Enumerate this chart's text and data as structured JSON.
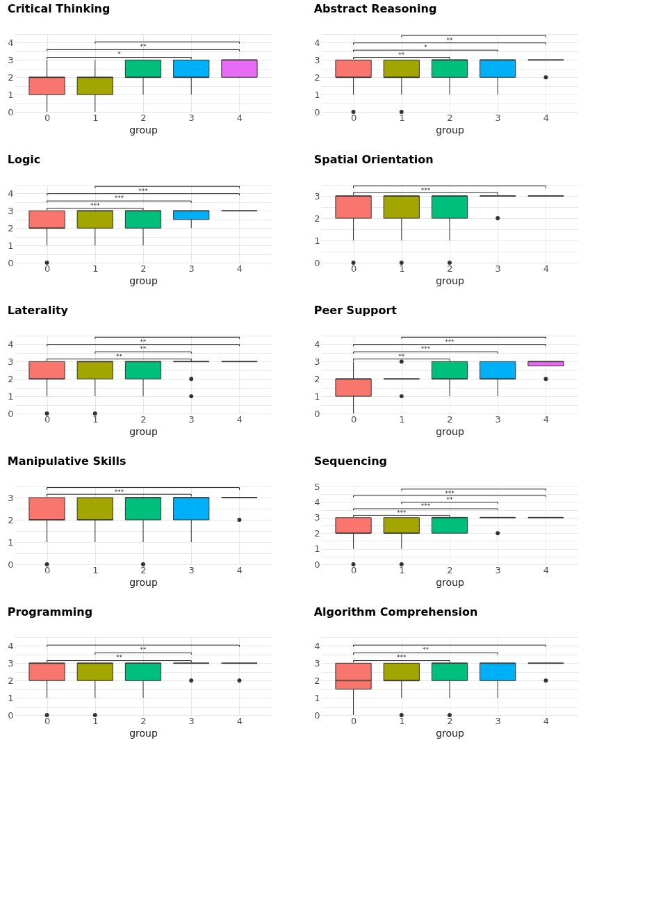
{
  "chart_data": [
    {
      "type": "box",
      "title": "Critical Thinking",
      "xlabel": "group",
      "categories": [
        "0",
        "1",
        "2",
        "3",
        "4"
      ],
      "colors": [
        "#f8766d",
        "#a3a500",
        "#00bf7d",
        "#00b0f6",
        "#e76bf3"
      ],
      "ylim": [
        0,
        4.5
      ],
      "yticks": [
        0,
        {
          "value": 0.5,
          "label": null
        },
        1,
        {
          "value": 1.5,
          "label": null
        },
        2,
        {
          "value": 2.5,
          "label": null
        },
        3,
        {
          "value": 3.5,
          "label": null
        },
        4,
        {
          "value": 4.5,
          "label": null
        }
      ],
      "grid": true,
      "boxes": [
        {
          "low": 0,
          "q1": 1,
          "median": 2,
          "q3": 2,
          "high": 3
        },
        {
          "low": 0,
          "q1": 1,
          "median": 2,
          "q3": 2,
          "high": 3
        },
        {
          "low": 1,
          "q1": 2,
          "median": 2,
          "q3": 3,
          "high": 3
        },
        {
          "low": 1,
          "q1": 2,
          "median": 2,
          "q3": 3,
          "high": 3
        },
        {
          "low": 2,
          "q1": 2,
          "median": 3,
          "q3": 3,
          "high": 3
        }
      ],
      "annotations": [
        "*",
        "**"
      ]
    },
    {
      "type": "box",
      "title": "Abstract Reasoning",
      "xlabel": "group",
      "categories": [
        "0",
        "1",
        "2",
        "3",
        "4"
      ],
      "colors": [
        "#f8766d",
        "#a3a500",
        "#00bf7d",
        "#00b0f6",
        "#333333"
      ],
      "ylim": [
        0,
        4.5
      ],
      "yticks": [
        0,
        {
          "value": 0.5,
          "label": null
        },
        1,
        {
          "value": 1.5,
          "label": null
        },
        2,
        {
          "value": 2.5,
          "label": null
        },
        3,
        {
          "value": 3.5,
          "label": null
        },
        4,
        {
          "value": 4.5,
          "label": null
        }
      ],
      "grid": true,
      "boxes": [
        {
          "low": 1,
          "q1": 2,
          "median": 2,
          "q3": 3,
          "high": 3,
          "outliers": [
            0
          ]
        },
        {
          "low": 1,
          "q1": 2,
          "median": 2,
          "q3": 3,
          "high": 3,
          "outliers": [
            0
          ]
        },
        {
          "low": 1,
          "q1": 2,
          "median": 3,
          "q3": 3,
          "high": 3
        },
        {
          "low": 1,
          "q1": 2,
          "median": 3,
          "q3": 3,
          "high": 3
        },
        {
          "low": 3,
          "q1": 3,
          "median": 3,
          "q3": 3,
          "high": 3,
          "outliers": [
            2
          ]
        }
      ],
      "annotations": [
        "**",
        "*",
        "**"
      ]
    },
    {
      "type": "box",
      "title": "Logic",
      "xlabel": "group",
      "categories": [
        "0",
        "1",
        "2",
        "3",
        "4"
      ],
      "colors": [
        "#f8766d",
        "#a3a500",
        "#00bf7d",
        "#00b0f6",
        "#333333"
      ],
      "ylim": [
        0,
        4.5
      ],
      "yticks": [
        0,
        {
          "value": 0.5,
          "label": null
        },
        1,
        {
          "value": 1.5,
          "label": null
        },
        2,
        {
          "value": 2.5,
          "label": null
        },
        3,
        {
          "value": 3.5,
          "label": null
        },
        4,
        {
          "value": 4.5,
          "label": null
        }
      ],
      "grid": true,
      "boxes": [
        {
          "low": 1,
          "q1": 2,
          "median": 2,
          "q3": 3,
          "high": 3,
          "outliers": [
            0
          ]
        },
        {
          "low": 1,
          "q1": 2,
          "median": 3,
          "q3": 3,
          "high": 3
        },
        {
          "low": 1,
          "q1": 2,
          "median": 3,
          "q3": 3,
          "high": 3
        },
        {
          "low": 2,
          "q1": 2.5,
          "median": 3,
          "q3": 3,
          "high": 3
        },
        {
          "low": 3,
          "q1": 3,
          "median": 3,
          "q3": 3,
          "high": 3
        }
      ],
      "annotations": [
        "***",
        "***",
        "***"
      ]
    },
    {
      "type": "box",
      "title": "Spatial Orientation",
      "xlabel": "group",
      "categories": [
        "0",
        "1",
        "2",
        "3",
        "4"
      ],
      "colors": [
        "#f8766d",
        "#a3a500",
        "#00bf7d",
        "#333333",
        "#333333"
      ],
      "ylim": [
        0,
        3.5
      ],
      "yticks": [
        0,
        {
          "value": 0.5,
          "label": null
        },
        1,
        {
          "value": 1.5,
          "label": null
        },
        2,
        {
          "value": 2.5,
          "label": null
        },
        3,
        {
          "value": 3.5,
          "label": null
        }
      ],
      "grid": true,
      "boxes": [
        {
          "low": 1,
          "q1": 2,
          "median": 3,
          "q3": 3,
          "high": 3,
          "outliers": [
            0
          ]
        },
        {
          "low": 1,
          "q1": 2,
          "median": 3,
          "q3": 3,
          "high": 3,
          "outliers": [
            0
          ]
        },
        {
          "low": 1,
          "q1": 2,
          "median": 3,
          "q3": 3,
          "high": 3,
          "outliers": [
            0
          ]
        },
        {
          "low": 3,
          "q1": 3,
          "median": 3,
          "q3": 3,
          "high": 3,
          "outliers": [
            2
          ]
        },
        {
          "low": 3,
          "q1": 3,
          "median": 3,
          "q3": 3,
          "high": 3
        }
      ],
      "annotations": [
        "***"
      ]
    },
    {
      "type": "box",
      "title": "Laterality",
      "xlabel": "group",
      "categories": [
        "0",
        "1",
        "2",
        "3",
        "4"
      ],
      "colors": [
        "#f8766d",
        "#a3a500",
        "#00bf7d",
        "#333333",
        "#333333"
      ],
      "ylim": [
        0,
        4.5
      ],
      "yticks": [
        0,
        {
          "value": 0.5,
          "label": null
        },
        1,
        {
          "value": 1.5,
          "label": null
        },
        2,
        {
          "value": 2.5,
          "label": null
        },
        3,
        {
          "value": 3.5,
          "label": null
        },
        4,
        {
          "value": 4.5,
          "label": null
        }
      ],
      "grid": true,
      "boxes": [
        {
          "low": 1,
          "q1": 2,
          "median": 2,
          "q3": 3,
          "high": 3,
          "outliers": [
            0
          ]
        },
        {
          "low": 1,
          "q1": 2,
          "median": 3,
          "q3": 3,
          "high": 3,
          "outliers": [
            0
          ]
        },
        {
          "low": 1,
          "q1": 2,
          "median": 3,
          "q3": 3,
          "high": 3
        },
        {
          "low": 3,
          "q1": 3,
          "median": 3,
          "q3": 3,
          "high": 3,
          "outliers": [
            2,
            1
          ]
        },
        {
          "low": 3,
          "q1": 3,
          "median": 3,
          "q3": 3,
          "high": 3
        }
      ],
      "annotations": [
        "**",
        "**",
        "**"
      ]
    },
    {
      "type": "box",
      "title": "Peer Support",
      "xlabel": "group",
      "categories": [
        "0",
        "1",
        "2",
        "3",
        "4"
      ],
      "colors": [
        "#f8766d",
        "#333333",
        "#00bf7d",
        "#00b0f6",
        "#e76bf3"
      ],
      "ylim": [
        0,
        4.5
      ],
      "yticks": [
        0,
        {
          "value": 0.5,
          "label": null
        },
        1,
        {
          "value": 1.5,
          "label": null
        },
        2,
        {
          "value": 2.5,
          "label": null
        },
        3,
        {
          "value": 3.5,
          "label": null
        },
        4,
        {
          "value": 4.5,
          "label": null
        }
      ],
      "grid": true,
      "boxes": [
        {
          "low": 0,
          "q1": 1,
          "median": 2,
          "q3": 2,
          "high": 3
        },
        {
          "low": 2,
          "q1": 2,
          "median": 2,
          "q3": 2,
          "high": 2,
          "outliers": [
            3,
            1
          ]
        },
        {
          "low": 1,
          "q1": 2,
          "median": 2,
          "q3": 3,
          "high": 3
        },
        {
          "low": 1,
          "q1": 2,
          "median": 2,
          "q3": 3,
          "high": 3
        },
        {
          "low": 2.75,
          "q1": 2.75,
          "median": 3,
          "q3": 3,
          "high": 3,
          "outliers": [
            2
          ]
        }
      ],
      "annotations": [
        "**",
        "***",
        "***"
      ]
    },
    {
      "type": "box",
      "title": "Manipulative Skills",
      "xlabel": "group",
      "categories": [
        "0",
        "1",
        "2",
        "3",
        "4"
      ],
      "colors": [
        "#f8766d",
        "#a3a500",
        "#00bf7d",
        "#00b0f6",
        "#333333"
      ],
      "ylim": [
        0,
        3.5
      ],
      "yticks": [
        0,
        {
          "value": 0.5,
          "label": null
        },
        1,
        {
          "value": 1.5,
          "label": null
        },
        2,
        {
          "value": 2.5,
          "label": null
        },
        3,
        {
          "value": 3.5,
          "label": null
        }
      ],
      "grid": true,
      "boxes": [
        {
          "low": 1,
          "q1": 2,
          "median": 2,
          "q3": 3,
          "high": 3,
          "outliers": [
            0
          ]
        },
        {
          "low": 1,
          "q1": 2,
          "median": 2,
          "q3": 3,
          "high": 3
        },
        {
          "low": 1,
          "q1": 2,
          "median": 3,
          "q3": 3,
          "high": 3,
          "outliers": [
            0
          ]
        },
        {
          "low": 1,
          "q1": 2,
          "median": 3,
          "q3": 3,
          "high": 3
        },
        {
          "low": 3,
          "q1": 3,
          "median": 3,
          "q3": 3,
          "high": 3,
          "outliers": [
            2
          ]
        }
      ],
      "annotations": [
        "***"
      ]
    },
    {
      "type": "box",
      "title": "Sequencing",
      "xlabel": "group",
      "categories": [
        "0",
        "1",
        "2",
        "3",
        "4"
      ],
      "colors": [
        "#f8766d",
        "#a3a500",
        "#00bf7d",
        "#333333",
        "#333333"
      ],
      "ylim": [
        0,
        5
      ],
      "yticks": [
        0,
        {
          "value": 0.5,
          "label": null
        },
        1,
        {
          "value": 1.5,
          "label": null
        },
        2,
        {
          "value": 2.5,
          "label": null
        },
        3,
        {
          "value": 3.5,
          "label": null
        },
        4,
        {
          "value": 4.5,
          "label": null
        },
        5
      ],
      "grid": true,
      "boxes": [
        {
          "low": 1,
          "q1": 2,
          "median": 2,
          "q3": 3,
          "high": 3,
          "outliers": [
            0
          ]
        },
        {
          "low": 1,
          "q1": 2,
          "median": 2,
          "q3": 3,
          "high": 3,
          "outliers": [
            0
          ]
        },
        {
          "low": 2,
          "q1": 2,
          "median": 3,
          "q3": 3,
          "high": 3
        },
        {
          "low": 3,
          "q1": 3,
          "median": 3,
          "q3": 3,
          "high": 3,
          "outliers": [
            2
          ]
        },
        {
          "low": 3,
          "q1": 3,
          "median": 3,
          "q3": 3,
          "high": 3
        }
      ],
      "annotations": [
        "***",
        "***",
        "**",
        "***"
      ]
    },
    {
      "type": "box",
      "title": "Programming",
      "xlabel": "group",
      "categories": [
        "0",
        "1",
        "2",
        "3",
        "4"
      ],
      "colors": [
        "#f8766d",
        "#a3a500",
        "#00bf7d",
        "#333333",
        "#333333"
      ],
      "ylim": [
        0,
        4.5
      ],
      "yticks": [
        0,
        {
          "value": 0.5,
          "label": null
        },
        1,
        {
          "value": 1.5,
          "label": null
        },
        2,
        {
          "value": 2.5,
          "label": null
        },
        3,
        {
          "value": 3.5,
          "label": null
        },
        4,
        {
          "value": 4.5,
          "label": null
        }
      ],
      "grid": true,
      "boxes": [
        {
          "low": 1,
          "q1": 2,
          "median": 3,
          "q3": 3,
          "high": 3,
          "outliers": [
            0
          ]
        },
        {
          "low": 1,
          "q1": 2,
          "median": 3,
          "q3": 3,
          "high": 3,
          "outliers": [
            0
          ]
        },
        {
          "low": 1,
          "q1": 2,
          "median": 3,
          "q3": 3,
          "high": 3
        },
        {
          "low": 3,
          "q1": 3,
          "median": 3,
          "q3": 3,
          "high": 3,
          "outliers": [
            2
          ]
        },
        {
          "low": 3,
          "q1": 3,
          "median": 3,
          "q3": 3,
          "high": 3,
          "outliers": [
            2
          ]
        }
      ],
      "annotations": [
        "**",
        "**"
      ]
    },
    {
      "type": "box",
      "title": "Algorithm Comprehension",
      "xlabel": "group",
      "categories": [
        "0",
        "1",
        "2",
        "3",
        "4"
      ],
      "colors": [
        "#f8766d",
        "#a3a500",
        "#00bf7d",
        "#00b0f6",
        "#333333"
      ],
      "ylim": [
        0,
        4.5
      ],
      "yticks": [
        0,
        {
          "value": 0.5,
          "label": null
        },
        1,
        {
          "value": 1.5,
          "label": null
        },
        2,
        {
          "value": 2.5,
          "label": null
        },
        3,
        {
          "value": 3.5,
          "label": null
        },
        4,
        {
          "value": 4.5,
          "label": null
        }
      ],
      "grid": true,
      "boxes": [
        {
          "low": 0,
          "q1": 1.5,
          "median": 2,
          "q3": 3,
          "high": 3
        },
        {
          "low": 1,
          "q1": 2,
          "median": 2,
          "q3": 3,
          "high": 3,
          "outliers": [
            0
          ]
        },
        {
          "low": 1,
          "q1": 2,
          "median": 3,
          "q3": 3,
          "high": 3,
          "outliers": [
            0
          ]
        },
        {
          "low": 1,
          "q1": 2,
          "median": 3,
          "q3": 3,
          "high": 3
        },
        {
          "low": 3,
          "q1": 3,
          "median": 3,
          "q3": 3,
          "high": 3,
          "outliers": [
            2
          ]
        }
      ],
      "annotations": [
        "***",
        "**"
      ]
    }
  ]
}
